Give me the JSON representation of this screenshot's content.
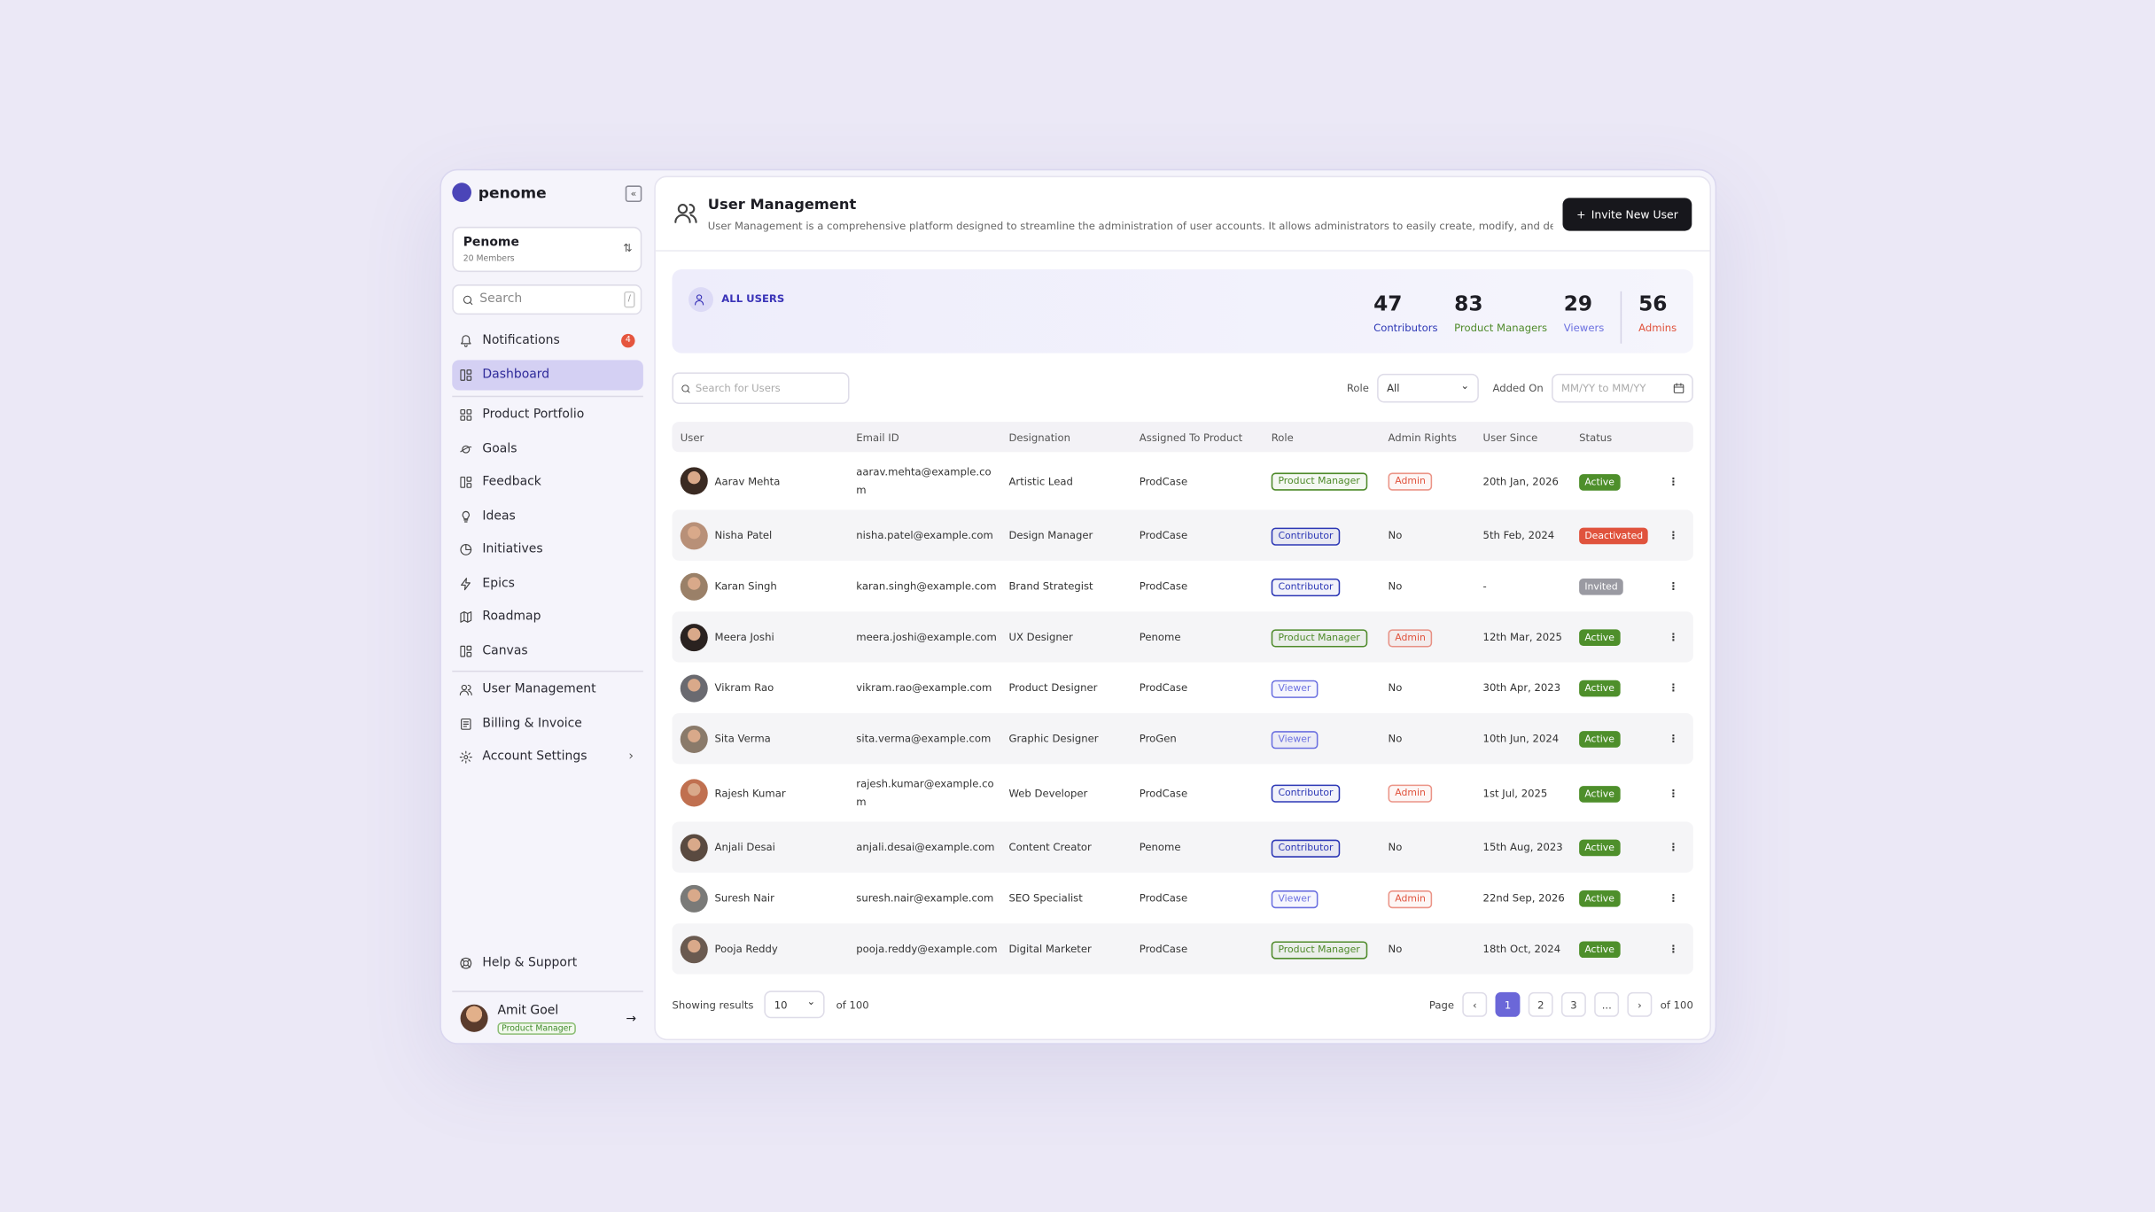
{
  "sidebar": {
    "brand": "penome",
    "workspace": {
      "name": "Penome",
      "members": "20 Members"
    },
    "search": {
      "placeholder": "Search",
      "shortcut": "/"
    },
    "nav_groups": [
      [
        {
          "label": "Notifications",
          "badge": 4
        },
        {
          "label": "Dashboard",
          "active": true
        }
      ],
      [
        {
          "label": "Product Portfolio"
        },
        {
          "label": "Goals"
        },
        {
          "label": "Feedback"
        },
        {
          "label": "Ideas"
        },
        {
          "label": "Initiatives"
        },
        {
          "label": "Epics"
        },
        {
          "label": "Roadmap"
        },
        {
          "label": "Canvas"
        }
      ],
      [
        {
          "label": "User Management"
        },
        {
          "label": "Billing & Invoice"
        },
        {
          "label": "Account Settings",
          "chevron": true
        }
      ]
    ],
    "help": "Help & Support",
    "user": {
      "name": "Amit Goel",
      "role": "Product Manager"
    }
  },
  "header": {
    "title": "User Management",
    "description": "User Management is a comprehensive platform designed to streamline the administration of user accounts. It allows administrators to easily create, modify, and delete use...",
    "button": "Invite New User"
  },
  "summary": {
    "label": "ALL USERS",
    "stats": [
      {
        "value": 47,
        "label": "Contributors",
        "color": "#2c37b5"
      },
      {
        "value": 83,
        "label": "Product Managers",
        "color": "#4e8a2a"
      },
      {
        "value": 29,
        "label": "Viewers",
        "color": "#6b70e0"
      },
      {
        "value": 56,
        "label": "Admins",
        "color": "#e0533d"
      }
    ]
  },
  "filters": {
    "search_placeholder": "Search for Users",
    "role_label": "Role",
    "role_value": "All",
    "date_label": "Added On",
    "date_placeholder": "MM/YY to MM/YY"
  },
  "table": {
    "columns": [
      "User",
      "Email ID",
      "Designation",
      "Assigned To Product",
      "Role",
      "Admin Rights",
      "User Since",
      "Status"
    ],
    "rows": [
      {
        "user": "Aarav Mehta",
        "email": "aarav.mehta@example.com",
        "designation": "Artistic Lead",
        "product": "ProdCase",
        "role": "Product Manager",
        "role_color": "#4e8a2a",
        "admin_rights": "Admin",
        "admin_color": "#e0533d",
        "user_since": "20th Jan, 2026",
        "status": "Active",
        "status_color": "#4e8f2b"
      },
      {
        "user": "Nisha Patel",
        "email": "nisha.patel@example.com",
        "designation": "Design Manager",
        "product": "ProdCase",
        "role": "Contributor",
        "role_color": "#2c37b5",
        "admin_rights": "No",
        "user_since": "5th Feb, 2024",
        "status": "Deactivated",
        "status_color": "#e0533d"
      },
      {
        "user": "Karan Singh",
        "email": "karan.singh@example.com",
        "designation": "Brand Strategist",
        "product": "ProdCase",
        "role": "Contributor",
        "role_color": "#2c37b5",
        "admin_rights": "No",
        "user_since": "-",
        "status": "Invited",
        "status_color": "#9a9aa2"
      },
      {
        "user": "Meera Joshi",
        "email": "meera.joshi@example.com",
        "designation": "UX Designer",
        "product": "Penome",
        "role": "Product Manager",
        "role_color": "#4e8a2a",
        "admin_rights": "Admin",
        "admin_color": "#e0533d",
        "user_since": "12th Mar, 2025",
        "status": "Active",
        "status_color": "#4e8f2b"
      },
      {
        "user": "Vikram Rao",
        "email": "vikram.rao@example.com",
        "designation": "Product Designer",
        "product": "ProdCase",
        "role": "Viewer",
        "role_color": "#6b70e0",
        "admin_rights": "No",
        "user_since": "30th Apr, 2023",
        "status": "Active",
        "status_color": "#4e8f2b"
      },
      {
        "user": "Sita Verma",
        "email": "sita.verma@example.com",
        "designation": "Graphic Designer",
        "product": "ProGen",
        "role": "Viewer",
        "role_color": "#6b70e0",
        "admin_rights": "No",
        "user_since": "10th Jun, 2024",
        "status": "Active",
        "status_color": "#4e8f2b"
      },
      {
        "user": "Rajesh Kumar",
        "email": "rajesh.kumar@example.com",
        "designation": "Web Developer",
        "product": "ProdCase",
        "role": "Contributor",
        "role_color": "#2c37b5",
        "admin_rights": "Admin",
        "admin_color": "#e0533d",
        "user_since": "1st Jul, 2025",
        "status": "Active",
        "status_color": "#4e8f2b"
      },
      {
        "user": "Anjali Desai",
        "email": "anjali.desai@example.com",
        "designation": "Content Creator",
        "product": "Penome",
        "role": "Contributor",
        "role_color": "#2c37b5",
        "admin_rights": "No",
        "user_since": "15th Aug, 2023",
        "status": "Active",
        "status_color": "#4e8f2b"
      },
      {
        "user": "Suresh Nair",
        "email": "suresh.nair@example.com",
        "designation": "SEO Specialist",
        "product": "ProdCase",
        "role": "Viewer",
        "role_color": "#6b70e0",
        "admin_rights": "Admin",
        "admin_color": "#e0533d",
        "user_since": "22nd Sep, 2026",
        "status": "Active",
        "status_color": "#4e8f2b"
      },
      {
        "user": "Pooja Reddy",
        "email": "pooja.reddy@example.com",
        "designation": "Digital Marketer",
        "product": "ProdCase",
        "role": "Product Manager",
        "role_color": "#4e8a2a",
        "admin_rights": "No",
        "user_since": "18th Oct, 2024",
        "status": "Active",
        "status_color": "#4e8f2b"
      }
    ]
  },
  "pagination": {
    "showing_label": "Showing results",
    "page_size": 10,
    "total_label": "of 100",
    "page_label": "Page",
    "pages": [
      1,
      2,
      3,
      "..."
    ],
    "current_page": 1,
    "pages_total_label": "of 100"
  }
}
